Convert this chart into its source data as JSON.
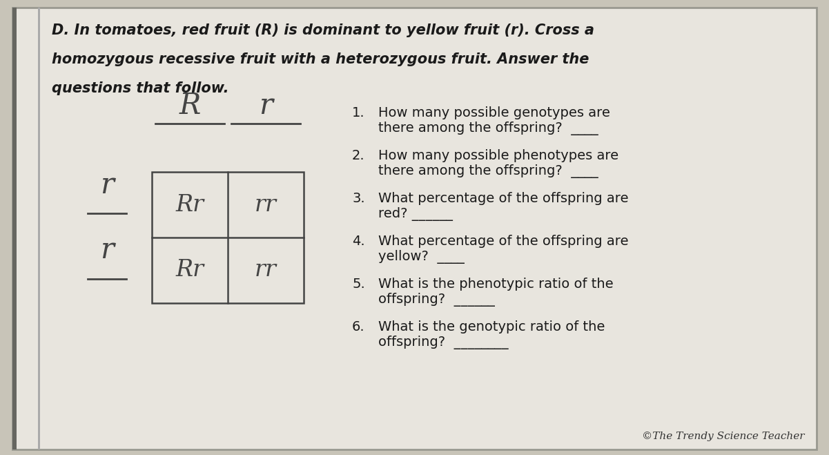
{
  "bg_color": "#c8c4b8",
  "paper_color": "#e8e5de",
  "title_line1": "D. In tomatoes, red fruit (R) is dominant to yellow fruit (r). Cross a",
  "title_line2": "homozygous recessive fruit with a heterozygous fruit. Answer the",
  "title_line3": "questions that follow.",
  "punnett_col_headers": [
    "R",
    "r"
  ],
  "punnett_row_headers": [
    "r",
    "r"
  ],
  "punnett_cells": [
    [
      "Rr",
      "rr"
    ],
    [
      "Rr",
      "rr"
    ]
  ],
  "questions_numbered": [
    [
      "1.",
      "How many possible genotypes are\nthere among the offspring?  ____"
    ],
    [
      "2.",
      "How many possible phenotypes are\nthere among the offspring?  ____"
    ],
    [
      "3.",
      "What percentage of the offspring are\nred? ______"
    ],
    [
      "4.",
      "What percentage of the offspring are\nyellow?  ____"
    ],
    [
      "5.",
      "What is the phenotypic ratio of the\noffspring?  ______"
    ],
    [
      "6.",
      "What is the genotypic ratio of the\noffspring?  ________"
    ]
  ],
  "copyright": "©The Trendy Science Teacher",
  "title_fontsize": 15,
  "question_fontsize": 14,
  "punnett_cell_fontsize": 24,
  "punnett_header_fontsize": 30
}
